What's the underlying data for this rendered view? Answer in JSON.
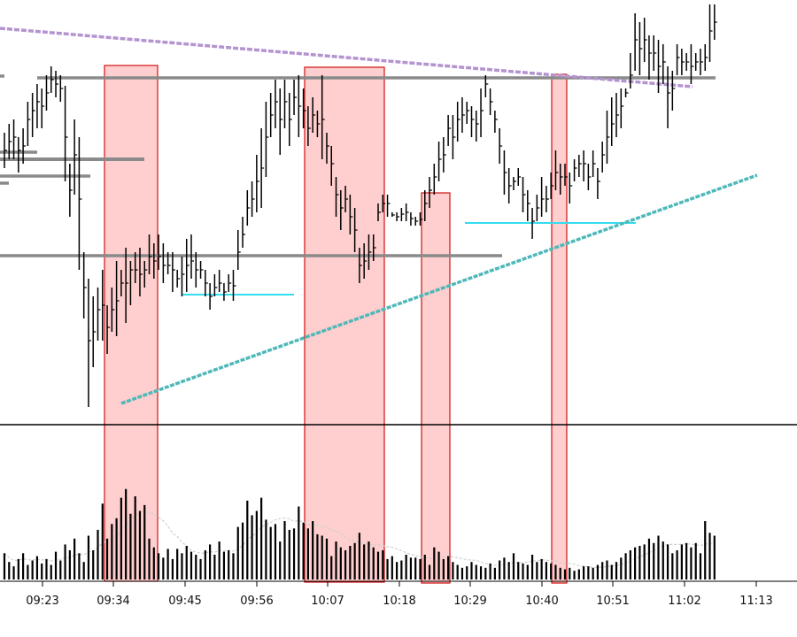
{
  "chart_data": {
    "type": "bar",
    "subtype": "ohlc-bars-with-volume",
    "title": "",
    "xlabel": "",
    "ylabel": "",
    "x_axis": {
      "tick_labels": [
        "09:23",
        "09:34",
        "09:45",
        "09:56",
        "10:07",
        "10:18",
        "10:29",
        "10:40",
        "10:51",
        "11:02",
        "11:13"
      ]
    },
    "grid": false,
    "legend": "none",
    "colors": {
      "bars": "#000000",
      "highlight_fill": "#ffc6c6",
      "highlight_stroke": "#d01010",
      "level_line": "#808080",
      "support_line": "#33ddee",
      "trendline_rising": "#4fb8b8",
      "trendline_falling": "#b494d0",
      "volume_average": "#d8d8d8"
    },
    "highlight_zones": [
      {
        "from": "09:33",
        "to": "09:38"
      },
      {
        "from": "10:03",
        "to": "10:15"
      },
      {
        "from": "10:21",
        "to": "10:25"
      },
      {
        "from": "10:41",
        "to": "10:43"
      }
    ],
    "price_bars": [
      [
        9.0,
        145,
        185,
        165
      ],
      [
        9.5,
        135,
        175,
        155
      ],
      [
        10,
        130,
        175,
        150
      ],
      [
        10.5,
        150,
        190,
        165
      ],
      [
        11,
        140,
        180,
        160
      ],
      [
        11.5,
        110,
        160,
        130
      ],
      [
        12,
        100,
        150,
        120
      ],
      [
        12.5,
        90,
        140,
        110
      ],
      [
        13,
        95,
        140,
        115
      ],
      [
        13.5,
        80,
        120,
        100
      ],
      [
        14,
        70,
        100,
        85
      ],
      [
        14.5,
        75,
        105,
        90
      ],
      [
        15,
        80,
        110,
        95
      ],
      [
        15.5,
        92,
        200,
        150
      ],
      [
        16,
        180,
        240,
        210
      ],
      [
        16.5,
        130,
        215,
        170
      ],
      [
        17,
        150,
        300,
        220
      ],
      [
        17.5,
        280,
        355,
        320
      ],
      [
        18,
        310,
        455,
        380
      ],
      [
        18.5,
        330,
        410,
        370
      ],
      [
        19,
        320,
        380,
        345
      ],
      [
        19.5,
        300,
        380,
        340
      ],
      [
        20,
        340,
        395,
        365
      ],
      [
        20.5,
        320,
        370,
        345
      ],
      [
        21,
        290,
        375,
        335
      ],
      [
        21.5,
        300,
        330,
        315
      ],
      [
        22,
        275,
        360,
        315
      ],
      [
        22.5,
        290,
        340,
        300
      ],
      [
        23,
        280,
        315,
        300
      ],
      [
        23.5,
        275,
        330,
        305
      ],
      [
        24,
        290,
        320,
        300
      ],
      [
        24.5,
        260,
        305,
        285
      ],
      [
        25,
        270,
        310,
        290
      ],
      [
        25.5,
        260,
        300,
        285
      ],
      [
        26,
        270,
        315,
        295
      ],
      [
        26.5,
        280,
        305,
        295
      ],
      [
        27,
        280,
        325,
        300
      ],
      [
        27.5,
        300,
        320,
        310
      ],
      [
        28,
        285,
        330,
        305
      ],
      [
        28.5,
        265,
        325,
        295
      ],
      [
        29,
        260,
        310,
        290
      ],
      [
        29.5,
        280,
        320,
        300
      ],
      [
        30,
        290,
        310,
        300
      ],
      [
        30.5,
        300,
        330,
        315
      ],
      [
        31,
        315,
        345,
        330
      ],
      [
        31.5,
        305,
        330,
        320
      ],
      [
        32,
        300,
        325,
        315
      ],
      [
        32.5,
        315,
        335,
        325
      ],
      [
        33,
        305,
        325,
        315
      ],
      [
        33.5,
        300,
        335,
        318
      ],
      [
        34,
        255,
        300,
        280
      ],
      [
        34.5,
        240,
        275,
        260
      ],
      [
        35,
        210,
        250,
        230
      ],
      [
        35.5,
        200,
        240,
        220
      ],
      [
        36,
        170,
        235,
        200
      ],
      [
        36.5,
        140,
        230,
        185
      ],
      [
        37,
        110,
        195,
        150
      ],
      [
        37.5,
        100,
        150,
        125
      ],
      [
        38,
        85,
        140,
        110
      ],
      [
        38.5,
        95,
        170,
        130
      ],
      [
        39,
        85,
        140,
        110
      ],
      [
        39.5,
        100,
        160,
        130
      ],
      [
        40,
        85,
        125,
        105
      ],
      [
        40.5,
        80,
        150,
        115
      ],
      [
        41,
        95,
        140,
        120
      ],
      [
        41.5,
        115,
        160,
        140
      ],
      [
        42,
        105,
        145,
        125
      ],
      [
        42.5,
        120,
        150,
        135
      ],
      [
        43,
        80,
        175,
        130
      ],
      [
        43.5,
        145,
        180,
        160
      ],
      [
        44,
        160,
        205,
        180
      ],
      [
        44.5,
        195,
        240,
        215
      ],
      [
        45,
        210,
        255,
        230
      ],
      [
        45.5,
        205,
        235,
        220
      ],
      [
        46,
        215,
        260,
        240
      ],
      [
        46.5,
        230,
        280,
        255
      ],
      [
        47,
        275,
        315,
        295
      ],
      [
        47.5,
        270,
        310,
        290
      ],
      [
        48,
        260,
        300,
        280
      ],
      [
        48.5,
        260,
        290,
        275
      ],
      [
        49,
        225,
        245,
        235
      ],
      [
        49.5,
        215,
        235,
        225
      ],
      [
        50,
        215,
        240,
        225
      ],
      [
        50.5,
        235,
        240,
        238
      ],
      [
        51,
        235,
        245,
        240
      ],
      [
        51.5,
        230,
        245,
        237
      ],
      [
        52,
        225,
        245,
        235
      ],
      [
        52.5,
        235,
        250,
        242
      ],
      [
        53,
        240,
        250,
        245
      ],
      [
        53.5,
        235,
        250,
        243
      ],
      [
        54,
        210,
        245,
        225
      ],
      [
        54.5,
        195,
        230,
        210
      ],
      [
        55,
        180,
        215,
        195
      ],
      [
        55.5,
        155,
        200,
        175
      ],
      [
        56,
        150,
        190,
        170
      ],
      [
        56.5,
        125,
        160,
        140
      ],
      [
        57,
        125,
        175,
        150
      ],
      [
        57.5,
        110,
        155,
        130
      ],
      [
        58,
        105,
        145,
        125
      ],
      [
        58.5,
        110,
        135,
        120
      ],
      [
        59,
        115,
        150,
        130
      ],
      [
        59.5,
        120,
        155,
        135
      ],
      [
        60,
        95,
        150,
        120
      ],
      [
        60.5,
        80,
        105,
        90
      ],
      [
        61,
        95,
        125,
        110
      ],
      [
        61.5,
        120,
        145,
        130
      ],
      [
        62,
        140,
        180,
        160
      ],
      [
        62.5,
        165,
        215,
        190
      ],
      [
        63,
        185,
        225,
        205
      ],
      [
        63.5,
        195,
        210,
        200
      ],
      [
        64,
        185,
        205,
        195
      ],
      [
        64.5,
        195,
        235,
        215
      ],
      [
        65,
        210,
        245,
        225
      ],
      [
        65.5,
        230,
        265,
        245
      ],
      [
        66,
        215,
        245,
        230
      ],
      [
        66.5,
        195,
        240,
        220
      ],
      [
        67,
        205,
        235,
        220
      ],
      [
        67.5,
        190,
        220,
        205
      ],
      [
        68,
        165,
        210,
        190
      ],
      [
        68.5,
        180,
        215,
        195
      ],
      [
        69,
        180,
        205,
        195
      ],
      [
        69.5,
        190,
        225,
        205
      ],
      [
        70,
        175,
        200,
        185
      ],
      [
        70.5,
        170,
        195,
        180
      ],
      [
        71,
        165,
        200,
        180
      ],
      [
        71.5,
        180,
        210,
        195
      ],
      [
        72,
        165,
        195,
        180
      ],
      [
        72.5,
        185,
        220,
        200
      ],
      [
        73,
        155,
        190,
        170
      ],
      [
        73.5,
        120,
        180,
        150
      ],
      [
        74,
        105,
        160,
        135
      ],
      [
        74.5,
        100,
        150,
        125
      ],
      [
        75,
        95,
        140,
        115
      ],
      [
        75.5,
        95,
        105,
        100
      ],
      [
        76,
        55,
        95,
        80
      ],
      [
        76.5,
        10,
        75,
        40
      ],
      [
        77,
        20,
        80,
        50
      ],
      [
        77.5,
        15,
        65,
        40
      ],
      [
        78,
        35,
        85,
        55
      ],
      [
        78.5,
        35,
        75,
        55
      ],
      [
        79,
        40,
        100,
        70
      ],
      [
        79.5,
        45,
        90,
        65
      ],
      [
        80,
        70,
        140,
        100
      ],
      [
        80.5,
        75,
        120,
        95
      ],
      [
        81,
        45,
        80,
        60
      ],
      [
        81.5,
        50,
        80,
        65
      ],
      [
        82,
        55,
        75,
        65
      ],
      [
        82.5,
        45,
        90,
        70
      ],
      [
        83,
        55,
        75,
        65
      ],
      [
        83.5,
        50,
        80,
        65
      ],
      [
        84,
        45,
        75,
        60
      ],
      [
        84.5,
        0,
        65,
        30
      ],
      [
        85,
        0,
        40,
        20
      ]
    ],
    "volume": [
      [
        9,
        18
      ],
      [
        9.5,
        12
      ],
      [
        10,
        9
      ],
      [
        10.5,
        14
      ],
      [
        11,
        18
      ],
      [
        11.5,
        10
      ],
      [
        12,
        13
      ],
      [
        12.5,
        16
      ],
      [
        13,
        11
      ],
      [
        13.5,
        14
      ],
      [
        14,
        10
      ],
      [
        14.5,
        19
      ],
      [
        15,
        13
      ],
      [
        15.5,
        24
      ],
      [
        16,
        20
      ],
      [
        16.5,
        28
      ],
      [
        17,
        18
      ],
      [
        17.5,
        12
      ],
      [
        18,
        30
      ],
      [
        18.5,
        20
      ],
      [
        19,
        34
      ],
      [
        19.5,
        52
      ],
      [
        20,
        28
      ],
      [
        20.5,
        38
      ],
      [
        21,
        42
      ],
      [
        21.5,
        56
      ],
      [
        22,
        62
      ],
      [
        22.5,
        45
      ],
      [
        23,
        57
      ],
      [
        23.5,
        47
      ],
      [
        24,
        51
      ],
      [
        24.5,
        28
      ],
      [
        25,
        22
      ],
      [
        25.5,
        18
      ],
      [
        26,
        15
      ],
      [
        26.5,
        21
      ],
      [
        27,
        14
      ],
      [
        27.5,
        21
      ],
      [
        28,
        18
      ],
      [
        28.5,
        23
      ],
      [
        29,
        19
      ],
      [
        29.5,
        17
      ],
      [
        30,
        14
      ],
      [
        30.5,
        20
      ],
      [
        31,
        24
      ],
      [
        31.5,
        17
      ],
      [
        32,
        26
      ],
      [
        32.5,
        19
      ],
      [
        33,
        20
      ],
      [
        33.5,
        18
      ],
      [
        34,
        36
      ],
      [
        34.5,
        39
      ],
      [
        35,
        54
      ],
      [
        35.5,
        44
      ],
      [
        36,
        47
      ],
      [
        36.5,
        56
      ],
      [
        37,
        41
      ],
      [
        37.5,
        36
      ],
      [
        38,
        38
      ],
      [
        38.5,
        26
      ],
      [
        39,
        40
      ],
      [
        39.5,
        34
      ],
      [
        40,
        35
      ],
      [
        40.5,
        50
      ],
      [
        41,
        39
      ],
      [
        41.5,
        35
      ],
      [
        42,
        40
      ],
      [
        42.5,
        31
      ],
      [
        43,
        30
      ],
      [
        43.5,
        28
      ],
      [
        44,
        16
      ],
      [
        44.5,
        26
      ],
      [
        45,
        22
      ],
      [
        45.5,
        20
      ],
      [
        46,
        23
      ],
      [
        46.5,
        25
      ],
      [
        47,
        32
      ],
      [
        47.5,
        24
      ],
      [
        48,
        26
      ],
      [
        48.5,
        22
      ],
      [
        49,
        19
      ],
      [
        49.5,
        20
      ],
      [
        50,
        14
      ],
      [
        50.5,
        16
      ],
      [
        51,
        12
      ],
      [
        51.5,
        13
      ],
      [
        52,
        17
      ],
      [
        52.5,
        15
      ],
      [
        53,
        15
      ],
      [
        53.5,
        14
      ],
      [
        54,
        17
      ],
      [
        54.5,
        10
      ],
      [
        55,
        22
      ],
      [
        55.5,
        19
      ],
      [
        56,
        14
      ],
      [
        56.5,
        16
      ],
      [
        57,
        12
      ],
      [
        57.5,
        10
      ],
      [
        58,
        8
      ],
      [
        58.5,
        9
      ],
      [
        59,
        12
      ],
      [
        59.5,
        10
      ],
      [
        60,
        9
      ],
      [
        60.5,
        8
      ],
      [
        61,
        11
      ],
      [
        61.5,
        8
      ],
      [
        62,
        13
      ],
      [
        62.5,
        15
      ],
      [
        63,
        12
      ],
      [
        63.5,
        18
      ],
      [
        64,
        12
      ],
      [
        64.5,
        11
      ],
      [
        65,
        10
      ],
      [
        65.5,
        17
      ],
      [
        66,
        12
      ],
      [
        66.5,
        14
      ],
      [
        67,
        12
      ],
      [
        67.5,
        11
      ],
      [
        68,
        10
      ],
      [
        68.5,
        8
      ],
      [
        69,
        7
      ],
      [
        69.5,
        8
      ],
      [
        70,
        6
      ],
      [
        70.5,
        7
      ],
      [
        71,
        9
      ],
      [
        71.5,
        9
      ],
      [
        72,
        8
      ],
      [
        72.5,
        10
      ],
      [
        73,
        12
      ],
      [
        73.5,
        13
      ],
      [
        74,
        10
      ],
      [
        74.5,
        12
      ],
      [
        75,
        15
      ],
      [
        75.5,
        18
      ],
      [
        76,
        20
      ],
      [
        76.5,
        22
      ],
      [
        77,
        23
      ],
      [
        77.5,
        24
      ],
      [
        78,
        28
      ],
      [
        78.5,
        25
      ],
      [
        79,
        30
      ],
      [
        79.5,
        26
      ],
      [
        80,
        24
      ],
      [
        80.5,
        18
      ],
      [
        81,
        20
      ],
      [
        81.5,
        24
      ],
      [
        82,
        25
      ],
      [
        82.5,
        22
      ],
      [
        83,
        25
      ],
      [
        83.5,
        18
      ],
      [
        84,
        40
      ],
      [
        84.5,
        32
      ],
      [
        85,
        30
      ]
    ]
  }
}
